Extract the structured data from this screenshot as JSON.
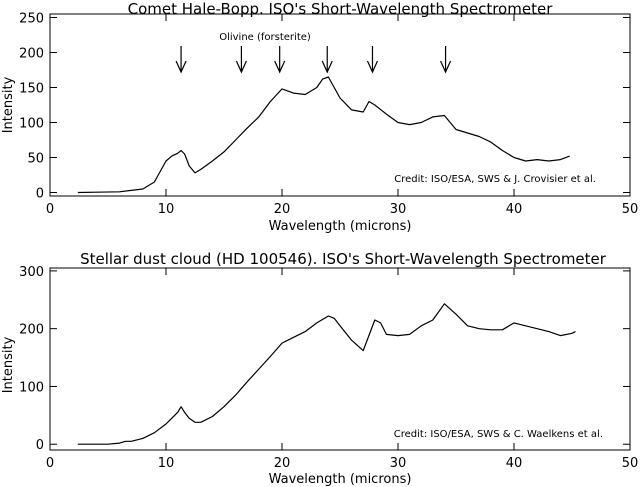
{
  "chart_data": [
    {
      "type": "line",
      "title": "Comet Hale-Bopp. ISO's Short-Wavelength Spectrometer",
      "xlabel": "Wavelength (microns)",
      "ylabel": "Intensity",
      "xlim": [
        0,
        50
      ],
      "ylim": [
        -5,
        255
      ],
      "x_ticks": [
        0,
        10,
        20,
        30,
        40,
        50
      ],
      "y_ticks": [
        0,
        50,
        100,
        150,
        200,
        250
      ],
      "grid": false,
      "credit": "Credit: ISO/ESA, SWS & J. Crovisier et al.",
      "annotation_label": "Olivine (forsterite)",
      "arrow_wavelengths": [
        11.3,
        16.5,
        19.8,
        23.9,
        27.8,
        34.1
      ],
      "series": [
        {
          "color": "#000000",
          "x": [
            2.4,
            4,
            6,
            8,
            9.0,
            9.5,
            10.0,
            10.5,
            11.0,
            11.3,
            11.6,
            12.0,
            12.5,
            13,
            14,
            15,
            16,
            17,
            18,
            19,
            20,
            21,
            22,
            23,
            23.5,
            24,
            24.5,
            25,
            26,
            27,
            27.5,
            28,
            29,
            30,
            31,
            32,
            33,
            34,
            35,
            36,
            37,
            38,
            39,
            40,
            41,
            42,
            43,
            44,
            44.8
          ],
          "y": [
            0,
            0.5,
            1,
            5,
            15,
            30,
            45,
            52,
            56,
            60,
            55,
            38,
            28,
            33,
            45,
            58,
            75,
            92,
            108,
            130,
            148,
            142,
            140,
            150,
            162,
            165,
            150,
            135,
            118,
            115,
            130,
            125,
            112,
            100,
            97,
            100,
            108,
            110,
            90,
            85,
            80,
            72,
            60,
            50,
            45,
            47,
            45,
            47,
            52
          ]
        }
      ]
    },
    {
      "type": "line",
      "title": "Stellar dust cloud (HD 100546). ISO's Short-Wavelength Spectrometer",
      "xlabel": "Wavelength (microns)",
      "ylabel": "Intensity",
      "xlim": [
        0,
        50
      ],
      "ylim": [
        -10,
        305
      ],
      "x_ticks": [
        0,
        10,
        20,
        30,
        40,
        50
      ],
      "y_ticks": [
        0,
        100,
        200,
        300
      ],
      "grid": false,
      "credit": "Credit: ISO/ESA, SWS & C. Waelkens et al.",
      "series": [
        {
          "color": "#000000",
          "x": [
            2.4,
            3,
            4,
            5,
            6,
            6.5,
            7,
            8,
            9,
            10,
            10.5,
            11,
            11.3,
            11.6,
            12,
            12.5,
            13,
            14,
            15,
            16,
            17,
            18,
            19,
            20,
            21,
            22,
            23,
            24,
            24.5,
            25,
            26,
            27,
            28,
            28.5,
            29,
            30,
            31,
            32,
            33,
            34,
            35,
            36,
            37,
            38,
            39,
            40,
            41,
            42,
            43,
            44,
            45,
            45.3
          ],
          "y": [
            0,
            0,
            0,
            0,
            2,
            5,
            5,
            10,
            20,
            35,
            45,
            55,
            65,
            55,
            45,
            38,
            38,
            48,
            65,
            85,
            108,
            130,
            152,
            175,
            185,
            195,
            210,
            222,
            218,
            205,
            180,
            162,
            215,
            210,
            190,
            188,
            190,
            205,
            215,
            243,
            225,
            205,
            200,
            198,
            198,
            210,
            205,
            200,
            195,
            188,
            192,
            195
          ]
        }
      ]
    }
  ]
}
